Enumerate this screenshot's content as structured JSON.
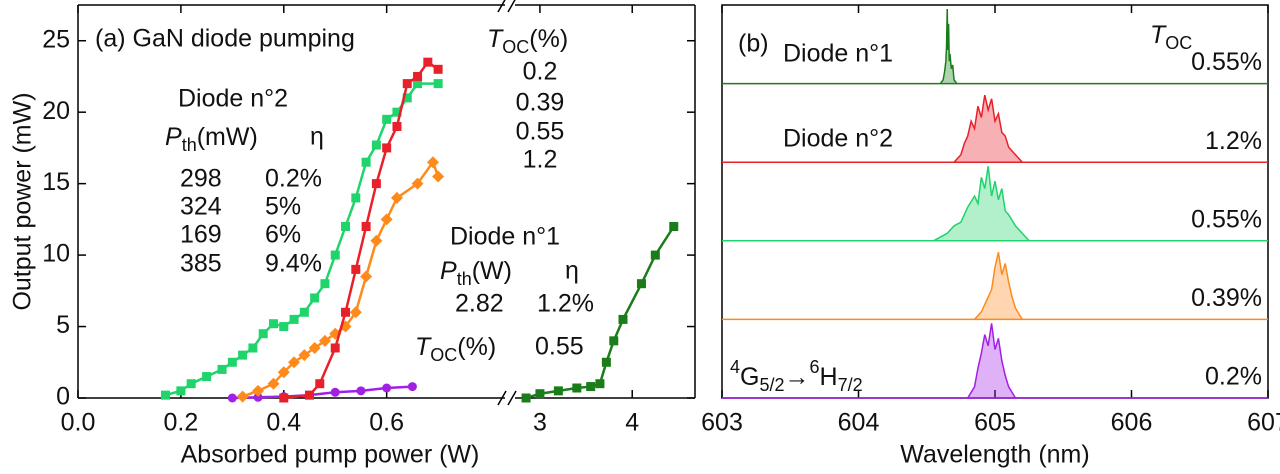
{
  "chart_data": [
    {
      "type": "scatter",
      "title": "(a) GaN diode pumping",
      "xlabel": "Absorbed pump power (W)",
      "ylabel": "Output power (mW)",
      "ylim": [
        0,
        27.5
      ],
      "yticks": [
        0,
        5,
        10,
        15,
        20,
        25
      ],
      "x_segments": [
        {
          "xlim": [
            0,
            0.83
          ],
          "xticks": [
            {
              "value": 0,
              "label": "0.0"
            },
            0.2,
            0.4,
            0.6
          ]
        },
        {
          "xlim": [
            2.73,
            4.68
          ],
          "xticks": [
            3,
            4
          ]
        }
      ],
      "annotations": {
        "toc_header": {
          "main": "T",
          "sub": "OC",
          "rest": "(%)"
        },
        "diode2": "Diode n°2",
        "pth2": {
          "main": "P",
          "sub": "th",
          "rest": "(mW)"
        },
        "eta2": "η",
        "diode1": "Diode n°1",
        "pth1": {
          "main": "P",
          "sub": "th",
          "rest": "(W)"
        },
        "eta1": "η",
        "toc1": {
          "main": "T",
          "sub": "OC",
          "rest": "(%)"
        }
      },
      "series": [
        {
          "color": "#a21fe6",
          "marker": "circle",
          "segment": 0,
          "pth": 298,
          "eta_label": "0.2%",
          "toc": 0.2,
          "x": [
            0.3,
            0.35,
            0.4,
            0.45,
            0.5,
            0.55,
            0.6,
            0.65
          ],
          "values": [
            0,
            0.05,
            0.1,
            0.2,
            0.4,
            0.5,
            0.7,
            0.8
          ]
        },
        {
          "color": "#ff8a1c",
          "marker": "diamond",
          "segment": 0,
          "pth": 324,
          "eta_label": "5%",
          "toc": 0.39,
          "x": [
            0.32,
            0.35,
            0.38,
            0.4,
            0.42,
            0.44,
            0.46,
            0.48,
            0.5,
            0.52,
            0.54,
            0.56,
            0.58,
            0.6,
            0.62,
            0.66,
            0.69,
            0.7
          ],
          "values": [
            0.1,
            0.5,
            1,
            1.8,
            2.5,
            3,
            3.5,
            4,
            4.5,
            5,
            6,
            8.5,
            11,
            12.5,
            14,
            15,
            16.5,
            15.5
          ]
        },
        {
          "color": "#1fd46a",
          "marker": "square",
          "segment": 0,
          "pth": 169,
          "eta_label": "6%",
          "toc": 0.55,
          "x": [
            0.17,
            0.2,
            0.22,
            0.25,
            0.28,
            0.3,
            0.32,
            0.34,
            0.36,
            0.38,
            0.4,
            0.42,
            0.44,
            0.46,
            0.48,
            0.5,
            0.52,
            0.54,
            0.56,
            0.58,
            0.6,
            0.62,
            0.64,
            0.66,
            0.7
          ],
          "values": [
            0.2,
            0.5,
            1,
            1.5,
            2,
            2.5,
            3,
            3.5,
            4.5,
            5.2,
            5,
            5.5,
            6,
            7,
            8,
            10,
            12,
            14,
            16.5,
            17.7,
            19.5,
            20,
            21,
            22,
            22
          ]
        },
        {
          "color": "#e8202a",
          "marker": "square",
          "segment": 0,
          "pth": 385,
          "eta_label": "9.4%",
          "toc": 1.2,
          "x": [
            0.4,
            0.45,
            0.47,
            0.5,
            0.52,
            0.54,
            0.56,
            0.58,
            0.6,
            0.62,
            0.64,
            0.66,
            0.68,
            0.7
          ],
          "values": [
            0,
            0.2,
            1,
            3.5,
            6,
            9,
            12,
            15,
            17.5,
            19,
            22,
            22.5,
            23.5,
            23
          ]
        },
        {
          "color": "#1a7d1a",
          "marker": "square",
          "segment": 1,
          "pth": 2.82,
          "eta_label": "1.2%",
          "toc": 0.55,
          "x": [
            2.85,
            3.0,
            3.2,
            3.4,
            3.55,
            3.65,
            3.72,
            3.8,
            3.9,
            4.1,
            4.25,
            4.45
          ],
          "values": [
            0,
            0.3,
            0.5,
            0.7,
            0.8,
            1,
            2.5,
            4,
            5.5,
            8,
            10,
            12
          ]
        }
      ]
    },
    {
      "type": "line",
      "title": "(b)",
      "xlabel": "Wavelength (nm)",
      "xlim": [
        603,
        607
      ],
      "xticks": [
        603,
        604,
        605,
        606,
        607
      ],
      "ylim": [
        0,
        1
      ],
      "annotations": {
        "diode1": "Diode n°1",
        "diode2": "Diode n°2",
        "toc_header": {
          "main": "T",
          "sub": "OC"
        },
        "transition": {
          "sup1": "4",
          "main1": "G",
          "sub1": "5/2",
          "arrow": "→",
          "sup2": "6",
          "main2": "H",
          "sub2": "7/2"
        }
      },
      "series": [
        {
          "color": "#1a7d1a",
          "toc_label": "0.55%",
          "x": [
            604.6,
            604.62,
            604.63,
            604.64,
            604.645,
            604.65,
            604.655,
            604.66,
            604.665,
            604.67,
            604.68,
            604.69,
            604.7,
            604.72
          ],
          "values": [
            0,
            0.05,
            0.15,
            0.3,
            0.5,
            1.0,
            0.45,
            0.8,
            0.3,
            0.4,
            0.2,
            0.25,
            0.05,
            0
          ]
        },
        {
          "color": "#e8202a",
          "toc_label": "1.2%",
          "x": [
            604.7,
            604.725,
            604.75,
            604.775,
            604.8,
            604.825,
            604.85,
            604.875,
            604.9,
            604.925,
            604.95,
            604.975,
            605.0,
            605.025,
            605.05,
            605.075,
            605.1,
            605.125,
            605.15,
            605.175,
            605.2
          ],
          "values": [
            0,
            0.05,
            0.1,
            0.25,
            0.35,
            0.55,
            0.45,
            0.75,
            0.6,
            0.9,
            0.7,
            0.85,
            0.55,
            0.65,
            0.4,
            0.35,
            0.2,
            0.15,
            0.1,
            0.05,
            0
          ]
        },
        {
          "color": "#1fd46a",
          "toc_label": "0.55%",
          "x": [
            604.55,
            604.6,
            604.65,
            604.7,
            604.75,
            604.8,
            604.85,
            604.875,
            604.9,
            604.925,
            604.95,
            604.975,
            605.0,
            605.025,
            605.05,
            605.075,
            605.1,
            605.15,
            605.2,
            605.25
          ],
          "values": [
            0,
            0.05,
            0.1,
            0.2,
            0.25,
            0.45,
            0.6,
            0.5,
            0.85,
            0.7,
            1.0,
            0.6,
            0.8,
            0.55,
            0.7,
            0.4,
            0.35,
            0.2,
            0.1,
            0
          ]
        },
        {
          "color": "#ff8a1c",
          "toc_label": "0.39%",
          "x": [
            604.85,
            604.9,
            604.95,
            604.975,
            605.0,
            605.025,
            605.05,
            605.075,
            605.1,
            605.125,
            605.15,
            605.2
          ],
          "values": [
            0,
            0.1,
            0.3,
            0.4,
            0.7,
            0.9,
            0.6,
            0.75,
            0.5,
            0.3,
            0.15,
            0
          ]
        },
        {
          "color": "#a21fe6",
          "toc_label": "0.2%",
          "x": [
            604.8,
            604.85,
            604.875,
            604.9,
            604.925,
            604.95,
            604.975,
            605.0,
            605.025,
            605.05,
            605.075,
            605.1,
            605.15
          ],
          "values": [
            0,
            0.15,
            0.4,
            0.6,
            0.85,
            0.7,
            1.0,
            0.65,
            0.8,
            0.5,
            0.3,
            0.15,
            0
          ]
        }
      ]
    }
  ]
}
